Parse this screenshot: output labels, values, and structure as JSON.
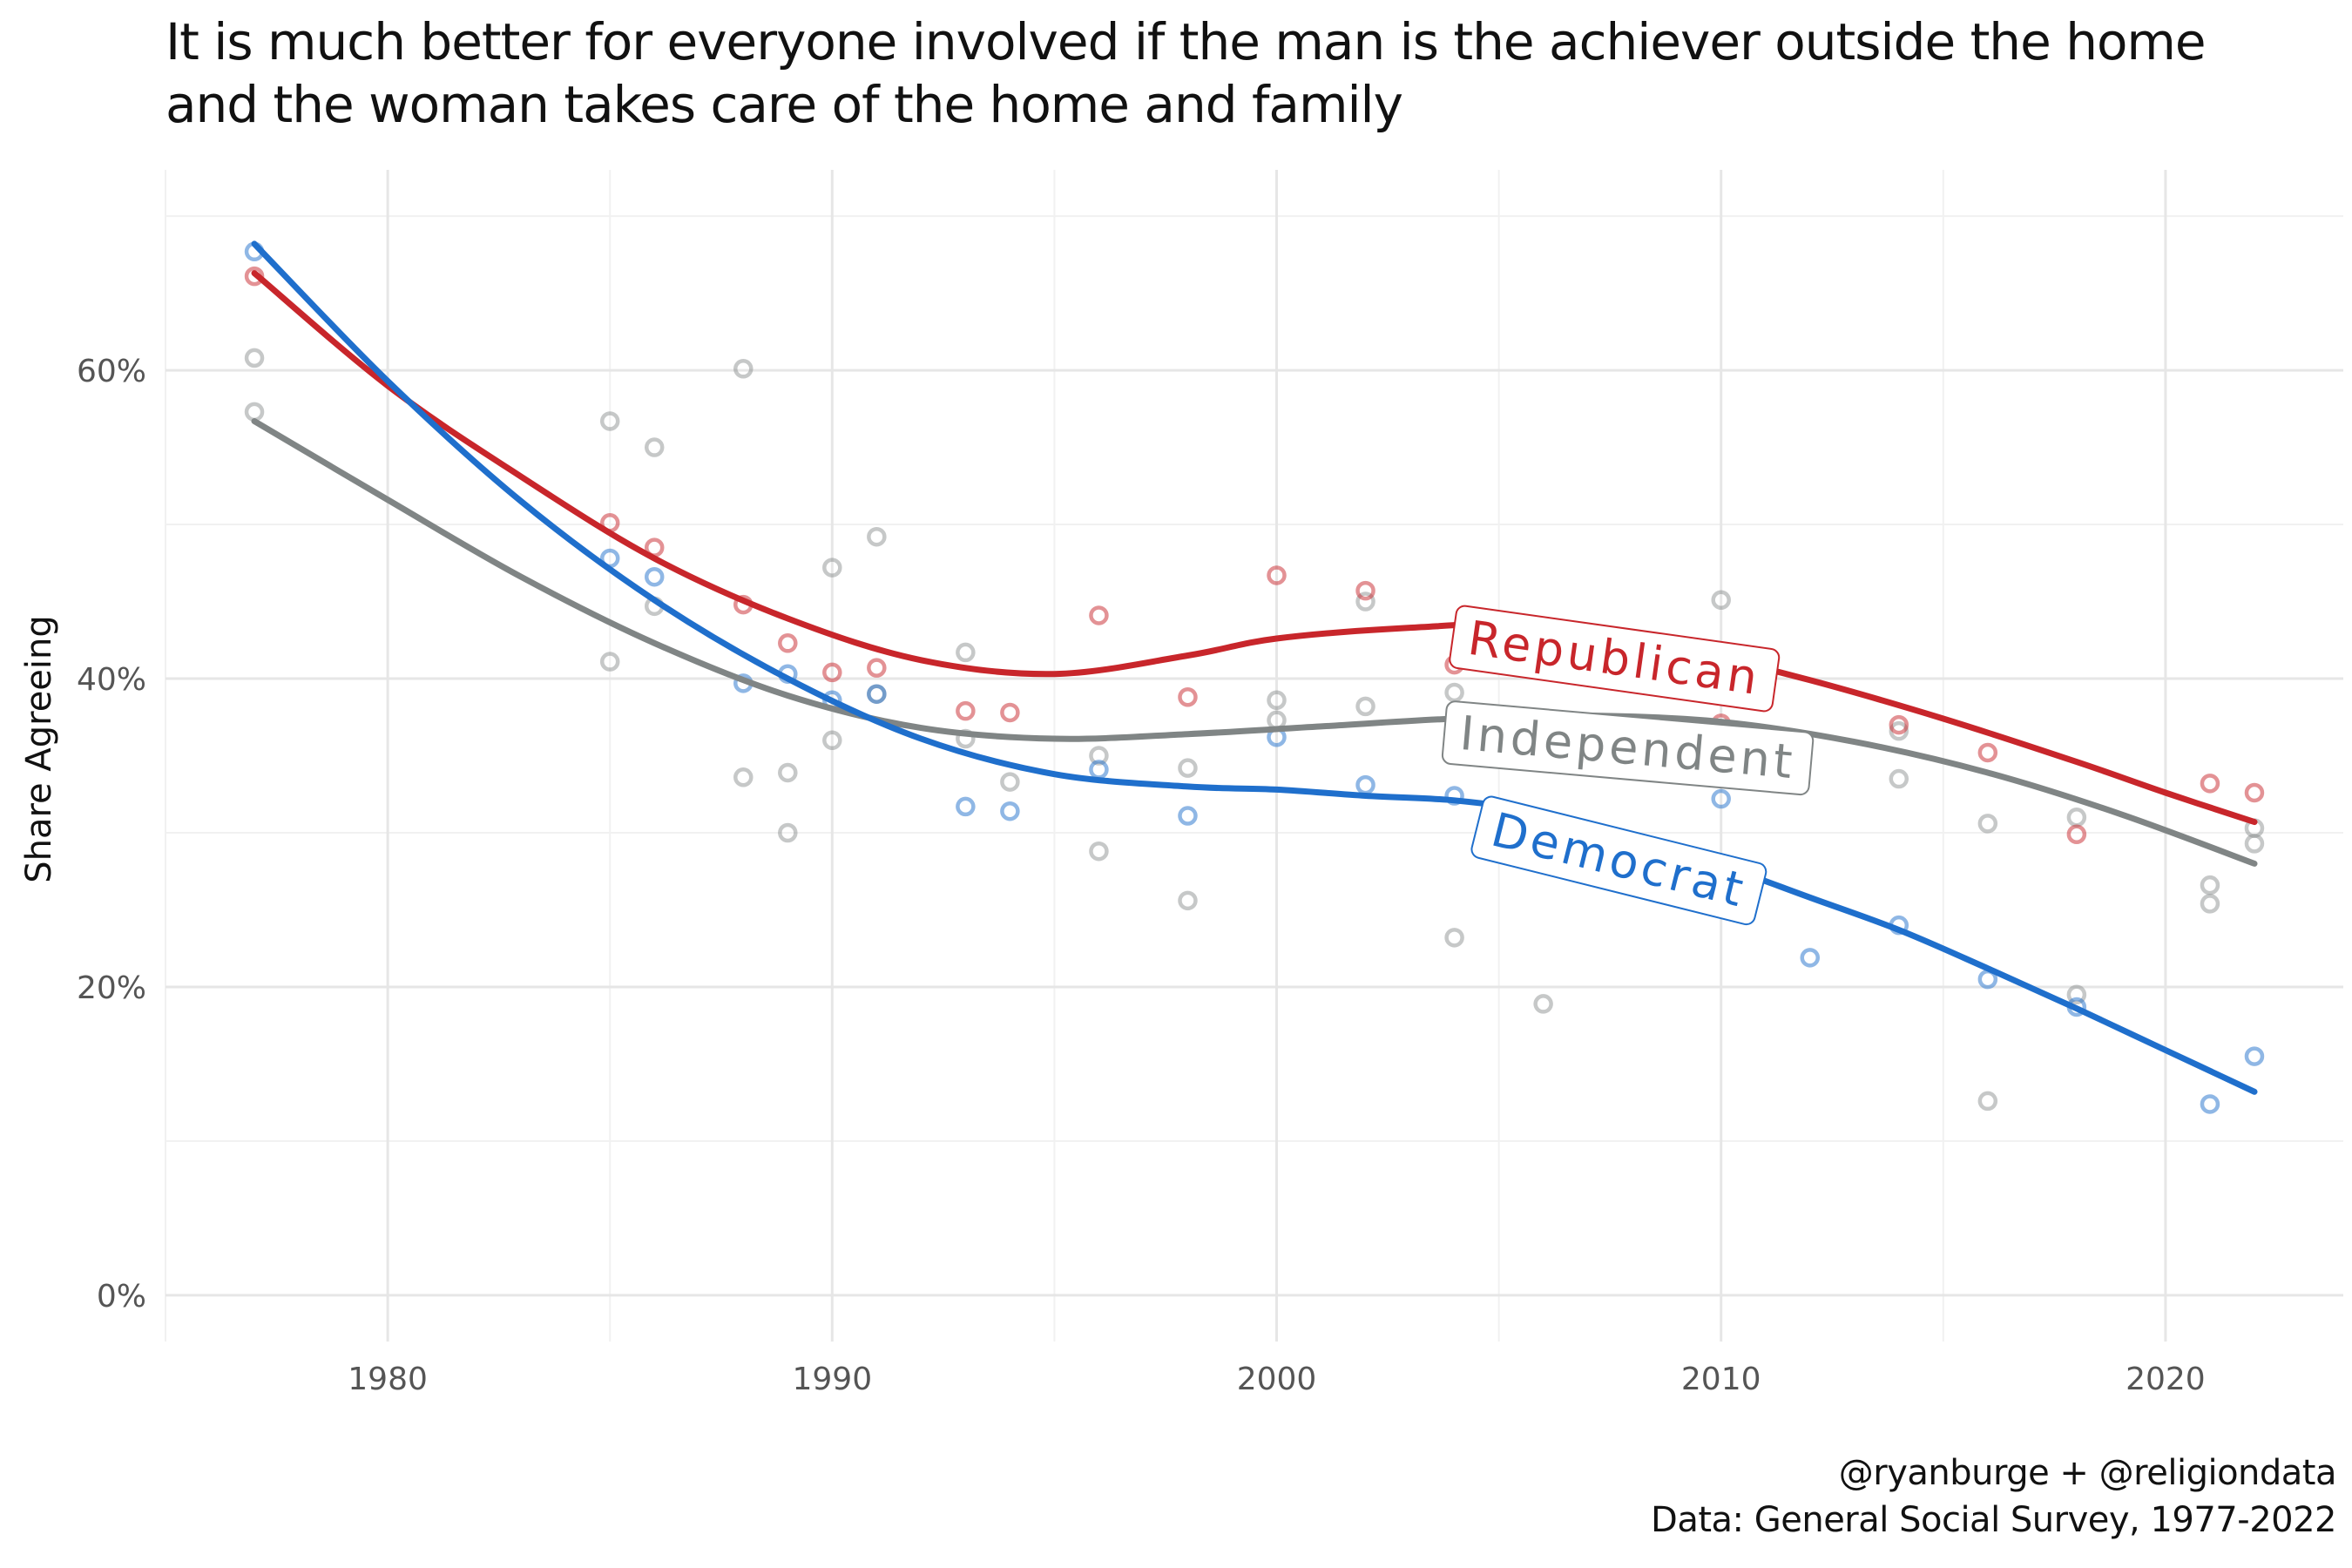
{
  "chart_data": {
    "type": "scatter",
    "title_lines": [
      "It is much better for everyone involved if the man is the achiever outside the home",
      "and the woman takes care of the home and family"
    ],
    "xlabel": "",
    "ylabel": "Share Agreeing",
    "xlim": [
      1975,
      2024
    ],
    "ylim": [
      -0.03,
      0.73
    ],
    "x_ticks": [
      1980,
      1990,
      2000,
      2010,
      2020
    ],
    "y_ticks": [
      0,
      0.2,
      0.4,
      0.6
    ],
    "y_tick_labels": [
      "0%",
      "20%",
      "40%",
      "60%"
    ],
    "grid": true,
    "legend": "direct labels on lines",
    "caption_lines": [
      "@ryanburge + @religiondata",
      "Data: General Social Survey, 1977-2022"
    ],
    "series": [
      {
        "name": "Republican",
        "color": "#c8262b",
        "points": [
          [
            1977,
            0.661
          ],
          [
            1985,
            0.501
          ],
          [
            1986,
            0.485
          ],
          [
            1988,
            0.448
          ],
          [
            1989,
            0.423
          ],
          [
            1990,
            0.404
          ],
          [
            1991,
            0.407
          ],
          [
            1993,
            0.379
          ],
          [
            1994,
            0.378
          ],
          [
            1996,
            0.441
          ],
          [
            1998,
            0.388
          ],
          [
            2000,
            0.467
          ],
          [
            2002,
            0.457
          ],
          [
            2004,
            0.409
          ],
          [
            2010,
            0.371
          ],
          [
            2014,
            0.37
          ],
          [
            2016,
            0.352
          ],
          [
            2018,
            0.299
          ],
          [
            2021,
            0.332
          ],
          [
            2022,
            0.326
          ]
        ],
        "trend": [
          [
            1977,
            0.663
          ],
          [
            1980,
            0.59
          ],
          [
            1983,
            0.531
          ],
          [
            1986,
            0.478
          ],
          [
            1989,
            0.439
          ],
          [
            1992,
            0.412
          ],
          [
            1995,
            0.403
          ],
          [
            1998,
            0.415
          ],
          [
            2000,
            0.426
          ],
          [
            2003,
            0.433
          ],
          [
            2006,
            0.435
          ],
          [
            2009,
            0.42
          ],
          [
            2012,
            0.399
          ],
          [
            2015,
            0.374
          ],
          [
            2018,
            0.346
          ],
          [
            2020,
            0.326
          ],
          [
            2022,
            0.307
          ]
        ]
      },
      {
        "name": "Independent",
        "color": "#808585",
        "points": [
          [
            1977,
            0.608
          ],
          [
            1977,
            0.573
          ],
          [
            1985,
            0.567
          ],
          [
            1985,
            0.411
          ],
          [
            1986,
            0.55
          ],
          [
            1986,
            0.447
          ],
          [
            1988,
            0.601
          ],
          [
            1988,
            0.336
          ],
          [
            1989,
            0.339
          ],
          [
            1989,
            0.3
          ],
          [
            1990,
            0.472
          ],
          [
            1990,
            0.36
          ],
          [
            1991,
            0.492
          ],
          [
            1991,
            0.39
          ],
          [
            1993,
            0.417
          ],
          [
            1993,
            0.361
          ],
          [
            1994,
            0.333
          ],
          [
            1996,
            0.35
          ],
          [
            1996,
            0.288
          ],
          [
            1998,
            0.342
          ],
          [
            1998,
            0.256
          ],
          [
            2000,
            0.386
          ],
          [
            2000,
            0.373
          ],
          [
            2002,
            0.45
          ],
          [
            2002,
            0.382
          ],
          [
            2004,
            0.391
          ],
          [
            2004,
            0.232
          ],
          [
            2006,
            0.189
          ],
          [
            2010,
            0.451
          ],
          [
            2014,
            0.366
          ],
          [
            2014,
            0.335
          ],
          [
            2016,
            0.306
          ],
          [
            2016,
            0.126
          ],
          [
            2018,
            0.31
          ],
          [
            2018,
            0.195
          ],
          [
            2021,
            0.266
          ],
          [
            2021,
            0.254
          ],
          [
            2022,
            0.303
          ],
          [
            2022,
            0.293
          ]
        ],
        "trend": [
          [
            1977,
            0.567
          ],
          [
            1980,
            0.516
          ],
          [
            1983,
            0.466
          ],
          [
            1986,
            0.423
          ],
          [
            1989,
            0.389
          ],
          [
            1992,
            0.368
          ],
          [
            1995,
            0.361
          ],
          [
            1998,
            0.364
          ],
          [
            2001,
            0.369
          ],
          [
            2004,
            0.374
          ],
          [
            2007,
            0.376
          ],
          [
            2010,
            0.372
          ],
          [
            2013,
            0.359
          ],
          [
            2016,
            0.339
          ],
          [
            2019,
            0.312
          ],
          [
            2022,
            0.28
          ]
        ]
      },
      {
        "name": "Democrat",
        "color": "#1f6fcc",
        "points": [
          [
            1977,
            0.677
          ],
          [
            1985,
            0.478
          ],
          [
            1986,
            0.466
          ],
          [
            1988,
            0.397
          ],
          [
            1989,
            0.403
          ],
          [
            1990,
            0.386
          ],
          [
            1991,
            0.39
          ],
          [
            1993,
            0.317
          ],
          [
            1994,
            0.314
          ],
          [
            1996,
            0.341
          ],
          [
            1998,
            0.311
          ],
          [
            2000,
            0.362
          ],
          [
            2002,
            0.331
          ],
          [
            2004,
            0.324
          ],
          [
            2010,
            0.322
          ],
          [
            2012,
            0.219
          ],
          [
            2014,
            0.24
          ],
          [
            2016,
            0.205
          ],
          [
            2018,
            0.187
          ],
          [
            2021,
            0.124
          ],
          [
            2022,
            0.155
          ]
        ],
        "trend": [
          [
            1977,
            0.682
          ],
          [
            1980,
            0.593
          ],
          [
            1983,
            0.515
          ],
          [
            1986,
            0.451
          ],
          [
            1989,
            0.4
          ],
          [
            1992,
            0.361
          ],
          [
            1995,
            0.338
          ],
          [
            1998,
            0.33
          ],
          [
            2000,
            0.328
          ],
          [
            2002,
            0.324
          ],
          [
            2004,
            0.321
          ],
          [
            2006,
            0.313
          ],
          [
            2008,
            0.298
          ],
          [
            2010,
            0.279
          ],
          [
            2012,
            0.258
          ],
          [
            2014,
            0.237
          ],
          [
            2016,
            0.212
          ],
          [
            2018,
            0.186
          ],
          [
            2020,
            0.159
          ],
          [
            2022,
            0.132
          ]
        ]
      }
    ],
    "labels": [
      {
        "text": "Republican",
        "series": "Republican",
        "x": 2007.6,
        "y": 0.413,
        "angle": 8
      },
      {
        "text": "Independent",
        "series": "Independent",
        "x": 2007.9,
        "y": 0.355,
        "angle": 5
      },
      {
        "text": "Democrat",
        "series": "Democrat",
        "x": 2007.7,
        "y": 0.282,
        "angle": 14
      }
    ]
  }
}
